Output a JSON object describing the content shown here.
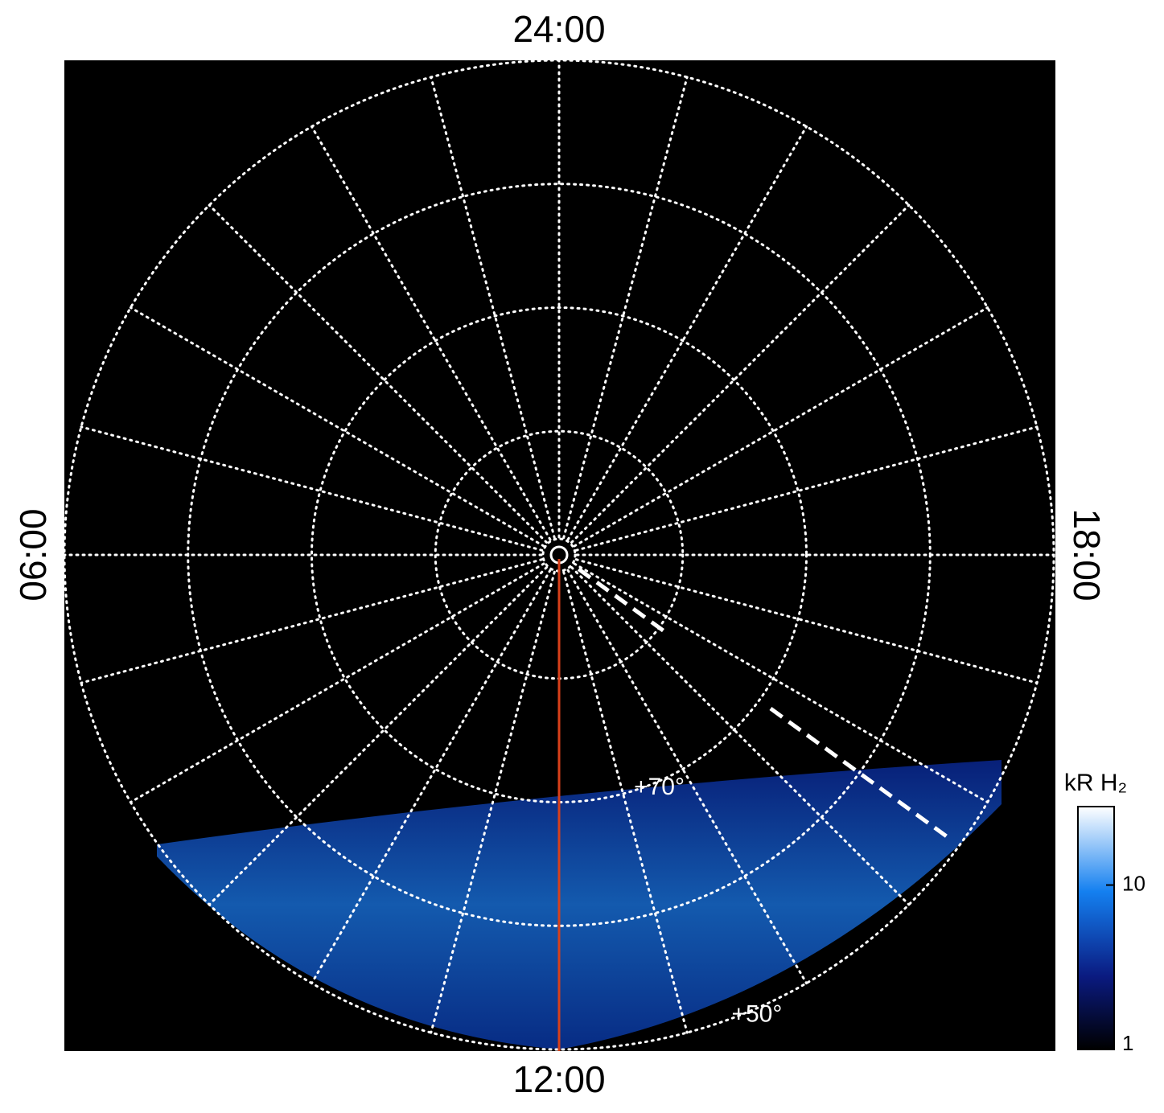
{
  "chart_data": {
    "type": "polar",
    "rlim": [
      90,
      50
    ],
    "lat_rings": [
      80,
      70,
      60,
      50
    ],
    "lat_labels": [
      {
        "value": 70,
        "label": "+70°"
      },
      {
        "value": 50,
        "label": "+50°"
      }
    ],
    "meridians": [
      0,
      1,
      2,
      3,
      4,
      5,
      6,
      7,
      8,
      9,
      10,
      11,
      12,
      13,
      14,
      15,
      16,
      17,
      18,
      19,
      20,
      21,
      22,
      23
    ],
    "xticks": [
      {
        "value": 0,
        "label": "24:00"
      },
      {
        "value": 6,
        "label": "06:00"
      },
      {
        "value": 12,
        "label": "12:00"
      },
      {
        "value": 18,
        "label": "18:00"
      }
    ],
    "annotation_lines": [
      {
        "hour": 12,
        "color": "#d8401a",
        "style": "solid"
      },
      {
        "hour": 15.6,
        "color": "#ffffff",
        "style": "dashed"
      }
    ],
    "colorbar": {
      "label": "kR H₂",
      "scale": "log",
      "lim": [
        1,
        30
      ],
      "ticks": [
        1,
        10
      ]
    }
  }
}
